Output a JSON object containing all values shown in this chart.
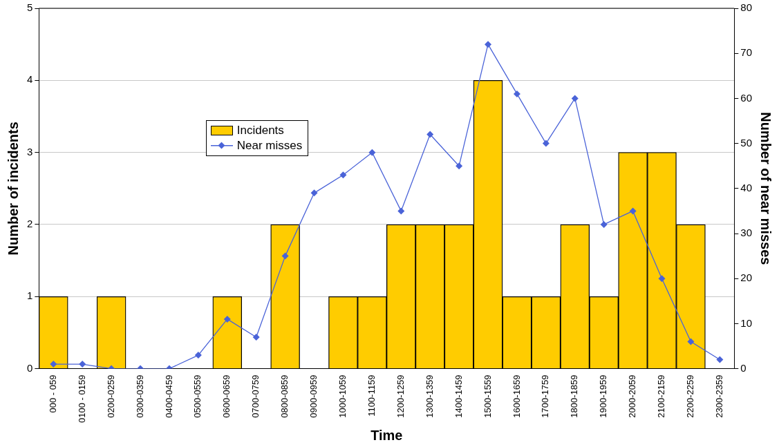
{
  "chart_data": {
    "type": "bar",
    "xlabel": "Time",
    "ylabel": "Number of incidents",
    "y2label": "Number of near misses",
    "categories": [
      "000 - 059",
      "0100 - 0159",
      "0200-0259",
      "0300-0359",
      "0400-0459",
      "0500-0559",
      "0600-0659",
      "0700-0759",
      "0800-0859",
      "0900-0959",
      "1000-1059",
      "1100-1159",
      "1200-1259",
      "1300-1359",
      "1400-1459",
      "1500-1559",
      "1600-1659",
      "1700-1759",
      "1800-1859",
      "1900-1959",
      "2000-2059",
      "2100-2159",
      "2200-2259",
      "2300-2359"
    ],
    "series": [
      {
        "name": "Incidents",
        "color": "#ffcc00",
        "values": [
          1,
          0,
          1,
          0,
          0,
          0,
          1,
          0,
          2,
          0,
          1,
          1,
          2,
          2,
          2,
          4,
          1,
          1,
          2,
          1,
          3,
          3,
          2,
          0
        ]
      },
      {
        "name": "Near misses",
        "type": "line",
        "axis": "y2",
        "color": "#4a63d8",
        "marker": "diamond",
        "values": [
          1,
          1,
          0,
          0,
          0,
          3,
          11,
          7,
          25,
          39,
          43,
          48,
          35,
          52,
          45,
          72,
          61,
          50,
          60,
          32,
          35,
          20,
          6,
          2
        ]
      }
    ],
    "ylim": [
      0,
      5
    ],
    "yticks": [
      0,
      1,
      2,
      3,
      4,
      5
    ],
    "y2lim": [
      0,
      80
    ],
    "y2ticks": [
      0,
      10,
      20,
      30,
      40,
      50,
      60,
      70,
      80
    ],
    "grid": "y",
    "legend": "left"
  }
}
